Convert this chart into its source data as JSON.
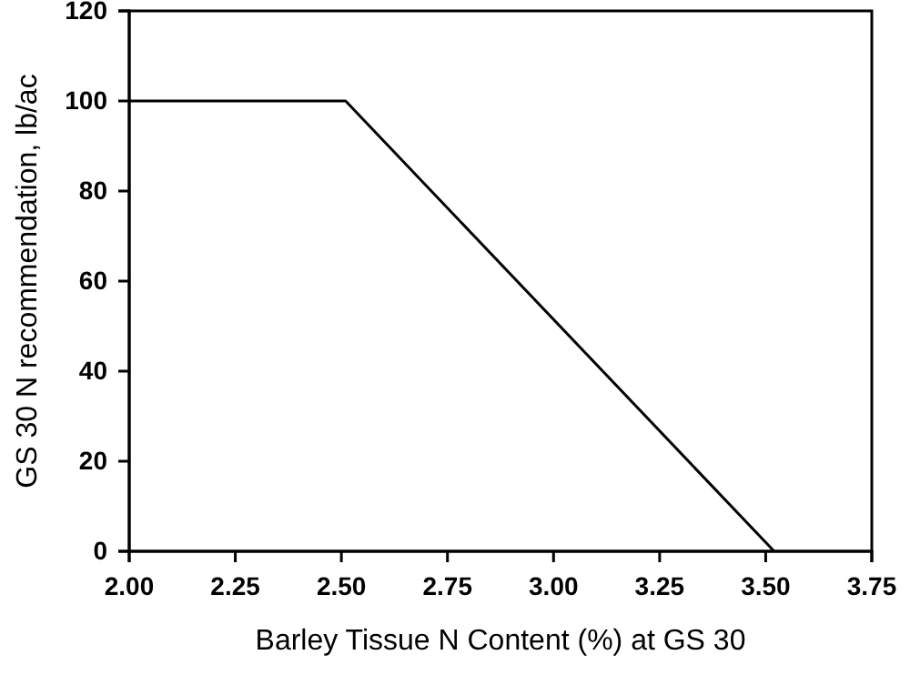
{
  "chart_data": {
    "type": "line",
    "xlabel": "Barley Tissue N Content (%) at GS 30",
    "ylabel": "GS 30 N recommendation, lb/ac",
    "x": [
      2.0,
      2.51,
      3.52
    ],
    "series": [
      {
        "color": "#000000",
        "values": [
          100,
          100,
          0
        ]
      }
    ],
    "xlim": [
      2.0,
      3.75
    ],
    "xticks": [
      {
        "value": 2,
        "label": "2.00"
      },
      {
        "value": 2.25,
        "label": "2.25"
      },
      {
        "value": 2.5,
        "label": "2.50"
      },
      {
        "value": 2.75,
        "label": "2.75"
      },
      {
        "value": 3,
        "label": "3.00"
      },
      {
        "value": 3.25,
        "label": "3.25"
      },
      {
        "value": 3.5,
        "label": "3.50"
      },
      {
        "value": 3.75,
        "label": "3.75"
      }
    ],
    "ylim": [
      0,
      120
    ],
    "yticks": [
      0,
      20,
      40,
      60,
      80,
      100,
      120
    ],
    "grid": false,
    "marker": "none",
    "line_style": "solid"
  }
}
